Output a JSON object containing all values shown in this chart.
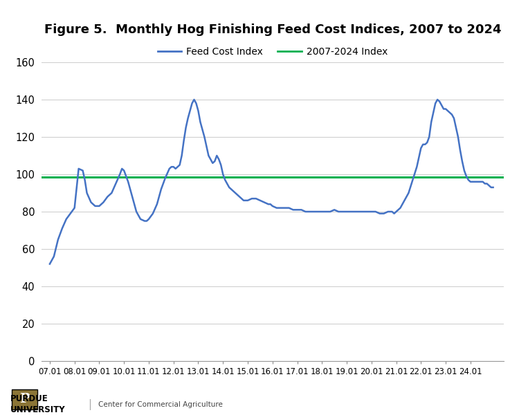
{
  "title": "Figure 5.  Monthly Hog Finishing Feed Cost Indices, 2007 to 2024",
  "legend_feed": "Feed Cost Index",
  "legend_avg": "2007-2024 Index",
  "feed_line_color": "#4472C4",
  "avg_line_color": "#00B050",
  "avg_value": 98.5,
  "ylim": [
    0,
    160
  ],
  "yticks": [
    0,
    20,
    40,
    60,
    80,
    100,
    120,
    140,
    160
  ],
  "xtick_labels": [
    "07.01",
    "08.01",
    "09.01",
    "10.01",
    "11.01",
    "12.01",
    "13.01",
    "14.01",
    "15.01",
    "16.01",
    "17.01",
    "18.01",
    "19.01",
    "20.01",
    "21.01",
    "22.01",
    "23.01",
    "24.01"
  ],
  "background_color": "#ffffff",
  "key_points": [
    [
      0,
      52
    ],
    [
      2,
      56
    ],
    [
      4,
      65
    ],
    [
      6,
      71
    ],
    [
      8,
      76
    ],
    [
      10,
      79
    ],
    [
      12,
      82
    ],
    [
      14,
      103
    ],
    [
      16,
      102
    ],
    [
      17,
      97
    ],
    [
      18,
      90
    ],
    [
      20,
      85
    ],
    [
      22,
      83
    ],
    [
      24,
      83
    ],
    [
      26,
      85
    ],
    [
      28,
      88
    ],
    [
      30,
      90
    ],
    [
      32,
      95
    ],
    [
      34,
      100
    ],
    [
      35,
      103
    ],
    [
      36,
      102
    ],
    [
      38,
      96
    ],
    [
      40,
      88
    ],
    [
      42,
      80
    ],
    [
      44,
      76
    ],
    [
      46,
      75
    ],
    [
      47,
      75
    ],
    [
      48,
      76
    ],
    [
      50,
      79
    ],
    [
      52,
      84
    ],
    [
      54,
      92
    ],
    [
      56,
      98
    ],
    [
      58,
      103
    ],
    [
      59,
      104
    ],
    [
      60,
      104
    ],
    [
      61,
      103
    ],
    [
      62,
      104
    ],
    [
      63,
      105
    ],
    [
      64,
      110
    ],
    [
      65,
      118
    ],
    [
      66,
      125
    ],
    [
      67,
      130
    ],
    [
      68,
      134
    ],
    [
      69,
      138
    ],
    [
      70,
      140
    ],
    [
      71,
      138
    ],
    [
      72,
      134
    ],
    [
      73,
      128
    ],
    [
      74,
      124
    ],
    [
      75,
      120
    ],
    [
      76,
      115
    ],
    [
      77,
      110
    ],
    [
      78,
      108
    ],
    [
      79,
      106
    ],
    [
      80,
      107
    ],
    [
      81,
      110
    ],
    [
      82,
      108
    ],
    [
      83,
      105
    ],
    [
      84,
      100
    ],
    [
      85,
      97
    ],
    [
      86,
      95
    ],
    [
      87,
      93
    ],
    [
      88,
      92
    ],
    [
      89,
      91
    ],
    [
      90,
      90
    ],
    [
      92,
      88
    ],
    [
      94,
      86
    ],
    [
      96,
      86
    ],
    [
      98,
      87
    ],
    [
      100,
      87
    ],
    [
      102,
      86
    ],
    [
      104,
      85
    ],
    [
      106,
      84
    ],
    [
      107,
      84
    ],
    [
      108,
      83
    ],
    [
      110,
      82
    ],
    [
      112,
      82
    ],
    [
      114,
      82
    ],
    [
      116,
      82
    ],
    [
      118,
      81
    ],
    [
      120,
      81
    ],
    [
      122,
      81
    ],
    [
      124,
      80
    ],
    [
      126,
      80
    ],
    [
      128,
      80
    ],
    [
      130,
      80
    ],
    [
      132,
      80
    ],
    [
      134,
      80
    ],
    [
      136,
      80
    ],
    [
      138,
      81
    ],
    [
      140,
      80
    ],
    [
      142,
      80
    ],
    [
      144,
      80
    ],
    [
      146,
      80
    ],
    [
      148,
      80
    ],
    [
      150,
      80
    ],
    [
      152,
      80
    ],
    [
      154,
      80
    ],
    [
      156,
      80
    ],
    [
      158,
      80
    ],
    [
      160,
      79
    ],
    [
      162,
      79
    ],
    [
      164,
      80
    ],
    [
      166,
      80
    ],
    [
      167,
      79
    ],
    [
      168,
      80
    ],
    [
      170,
      82
    ],
    [
      172,
      86
    ],
    [
      174,
      90
    ],
    [
      176,
      97
    ],
    [
      178,
      104
    ],
    [
      179,
      109
    ],
    [
      180,
      114
    ],
    [
      181,
      116
    ],
    [
      182,
      116
    ],
    [
      183,
      117
    ],
    [
      184,
      120
    ],
    [
      185,
      128
    ],
    [
      186,
      133
    ],
    [
      187,
      138
    ],
    [
      188,
      140
    ],
    [
      189,
      139
    ],
    [
      190,
      137
    ],
    [
      191,
      135
    ],
    [
      192,
      135
    ],
    [
      193,
      134
    ],
    [
      194,
      133
    ],
    [
      195,
      132
    ],
    [
      196,
      130
    ],
    [
      197,
      125
    ],
    [
      198,
      120
    ],
    [
      199,
      113
    ],
    [
      200,
      107
    ],
    [
      201,
      102
    ],
    [
      202,
      99
    ],
    [
      203,
      97
    ],
    [
      204,
      96
    ],
    [
      205,
      96
    ],
    [
      206,
      96
    ],
    [
      207,
      96
    ],
    [
      208,
      96
    ],
    [
      209,
      96
    ],
    [
      210,
      96
    ],
    [
      211,
      95
    ],
    [
      212,
      95
    ],
    [
      213,
      94
    ],
    [
      214,
      93
    ],
    [
      215,
      93
    ]
  ]
}
